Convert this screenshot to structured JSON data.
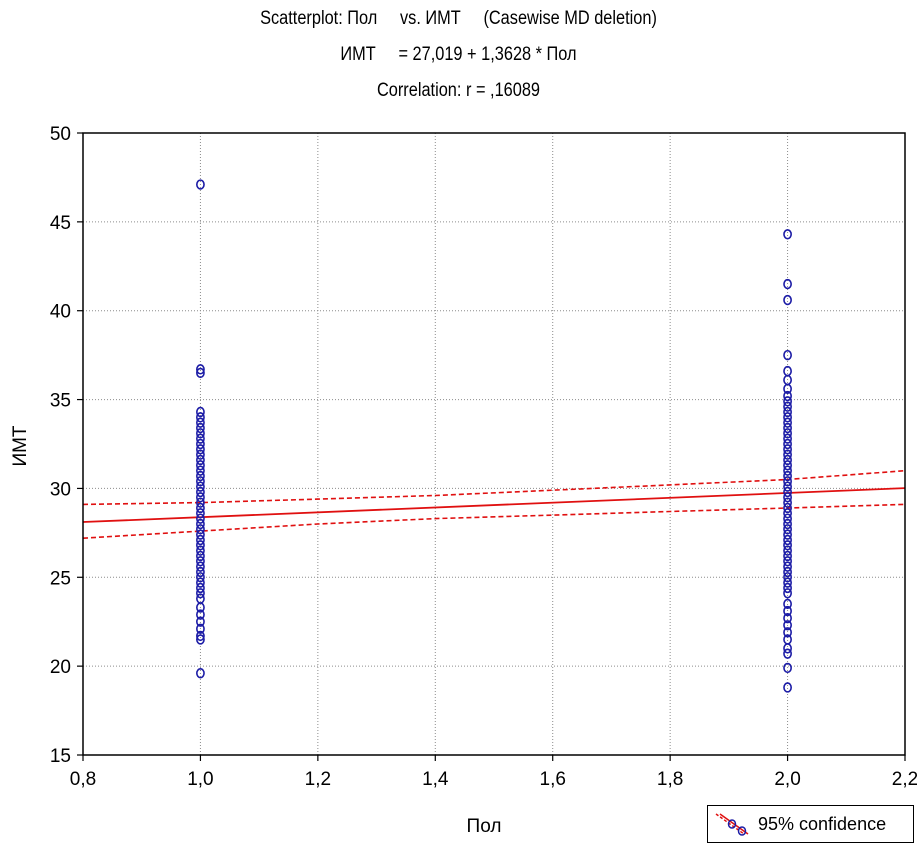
{
  "chart_data": {
    "type": "scatter",
    "title": "Scatterplot: Пол     vs. ИМТ     (Casewise MD deletion)",
    "subtitle": "ИМТ     = 27,019 + 1,3628 * Пол",
    "correlation": "Correlation: r = ,16089",
    "xlabel": "Пол",
    "ylabel": "ИМТ",
    "xlim": [
      0.8,
      2.2
    ],
    "ylim": [
      15,
      50
    ],
    "x_ticks": [
      "0,8",
      "1,0",
      "1,2",
      "1,4",
      "1,6",
      "1,8",
      "2,0",
      "2,2"
    ],
    "y_ticks": [
      "15",
      "20",
      "25",
      "30",
      "35",
      "40",
      "45",
      "50"
    ],
    "grid": true,
    "legend": {
      "position": "bottom-right",
      "label": "95% confidence"
    },
    "regression": {
      "intercept": 27.019,
      "slope": 1.3628
    },
    "confidence_band": {
      "x": [
        0.8,
        1.0,
        1.2,
        1.4,
        1.6,
        1.8,
        2.0,
        2.2
      ],
      "upper": [
        29.1,
        29.2,
        29.4,
        29.6,
        29.9,
        30.2,
        30.5,
        31.0
      ],
      "lower": [
        27.2,
        27.6,
        28.0,
        28.3,
        28.5,
        28.7,
        28.9,
        29.1
      ]
    },
    "series": [
      {
        "points": [
          [
            1.0,
            47.1
          ],
          [
            1.0,
            36.7
          ],
          [
            1.0,
            36.5
          ],
          [
            1.0,
            34.3
          ],
          [
            1.0,
            34.0
          ],
          [
            1.0,
            33.7
          ],
          [
            1.0,
            33.4
          ],
          [
            1.0,
            33.1
          ],
          [
            1.0,
            32.8
          ],
          [
            1.0,
            32.5
          ],
          [
            1.0,
            32.2
          ],
          [
            1.0,
            31.9
          ],
          [
            1.0,
            31.6
          ],
          [
            1.0,
            31.3
          ],
          [
            1.0,
            31.0
          ],
          [
            1.0,
            30.7
          ],
          [
            1.0,
            30.4
          ],
          [
            1.0,
            30.1
          ],
          [
            1.0,
            29.8
          ],
          [
            1.0,
            29.5
          ],
          [
            1.0,
            29.2
          ],
          [
            1.0,
            28.9
          ],
          [
            1.0,
            28.6
          ],
          [
            1.0,
            28.3
          ],
          [
            1.0,
            28.0
          ],
          [
            1.0,
            27.7
          ],
          [
            1.0,
            27.4
          ],
          [
            1.0,
            27.1
          ],
          [
            1.0,
            26.8
          ],
          [
            1.0,
            26.5
          ],
          [
            1.0,
            26.2
          ],
          [
            1.0,
            25.9
          ],
          [
            1.0,
            25.6
          ],
          [
            1.0,
            25.3
          ],
          [
            1.0,
            25.0
          ],
          [
            1.0,
            24.7
          ],
          [
            1.0,
            24.4
          ],
          [
            1.0,
            24.1
          ],
          [
            1.0,
            23.8
          ],
          [
            1.0,
            23.3
          ],
          [
            1.0,
            22.9
          ],
          [
            1.0,
            22.5
          ],
          [
            1.0,
            22.1
          ],
          [
            1.0,
            21.7
          ],
          [
            1.0,
            21.5
          ],
          [
            1.0,
            19.6
          ],
          [
            2.0,
            44.3
          ],
          [
            2.0,
            41.5
          ],
          [
            2.0,
            40.6
          ],
          [
            2.0,
            37.5
          ],
          [
            2.0,
            36.6
          ],
          [
            2.0,
            36.1
          ],
          [
            2.0,
            35.6
          ],
          [
            2.0,
            35.2
          ],
          [
            2.0,
            34.9
          ],
          [
            2.0,
            34.6
          ],
          [
            2.0,
            34.3
          ],
          [
            2.0,
            34.0
          ],
          [
            2.0,
            33.7
          ],
          [
            2.0,
            33.4
          ],
          [
            2.0,
            33.1
          ],
          [
            2.0,
            32.8
          ],
          [
            2.0,
            32.5
          ],
          [
            2.0,
            32.2
          ],
          [
            2.0,
            31.9
          ],
          [
            2.0,
            31.6
          ],
          [
            2.0,
            31.3
          ],
          [
            2.0,
            31.0
          ],
          [
            2.0,
            30.7
          ],
          [
            2.0,
            30.4
          ],
          [
            2.0,
            30.1
          ],
          [
            2.0,
            29.8
          ],
          [
            2.0,
            29.5
          ],
          [
            2.0,
            29.2
          ],
          [
            2.0,
            28.9
          ],
          [
            2.0,
            28.6
          ],
          [
            2.0,
            28.3
          ],
          [
            2.0,
            28.0
          ],
          [
            2.0,
            27.7
          ],
          [
            2.0,
            27.4
          ],
          [
            2.0,
            27.1
          ],
          [
            2.0,
            26.8
          ],
          [
            2.0,
            26.5
          ],
          [
            2.0,
            26.2
          ],
          [
            2.0,
            25.9
          ],
          [
            2.0,
            25.6
          ],
          [
            2.0,
            25.3
          ],
          [
            2.0,
            25.0
          ],
          [
            2.0,
            24.7
          ],
          [
            2.0,
            24.4
          ],
          [
            2.0,
            24.1
          ],
          [
            2.0,
            23.5
          ],
          [
            2.0,
            23.1
          ],
          [
            2.0,
            22.7
          ],
          [
            2.0,
            22.3
          ],
          [
            2.0,
            21.9
          ],
          [
            2.0,
            21.5
          ],
          [
            2.0,
            21.0
          ],
          [
            2.0,
            20.7
          ],
          [
            2.0,
            19.9
          ],
          [
            2.0,
            18.8
          ]
        ]
      }
    ]
  },
  "colors": {
    "points": "#1c1ca6",
    "regression": "#e01010",
    "grid": "#8c8c8c",
    "axis": "#000000"
  }
}
